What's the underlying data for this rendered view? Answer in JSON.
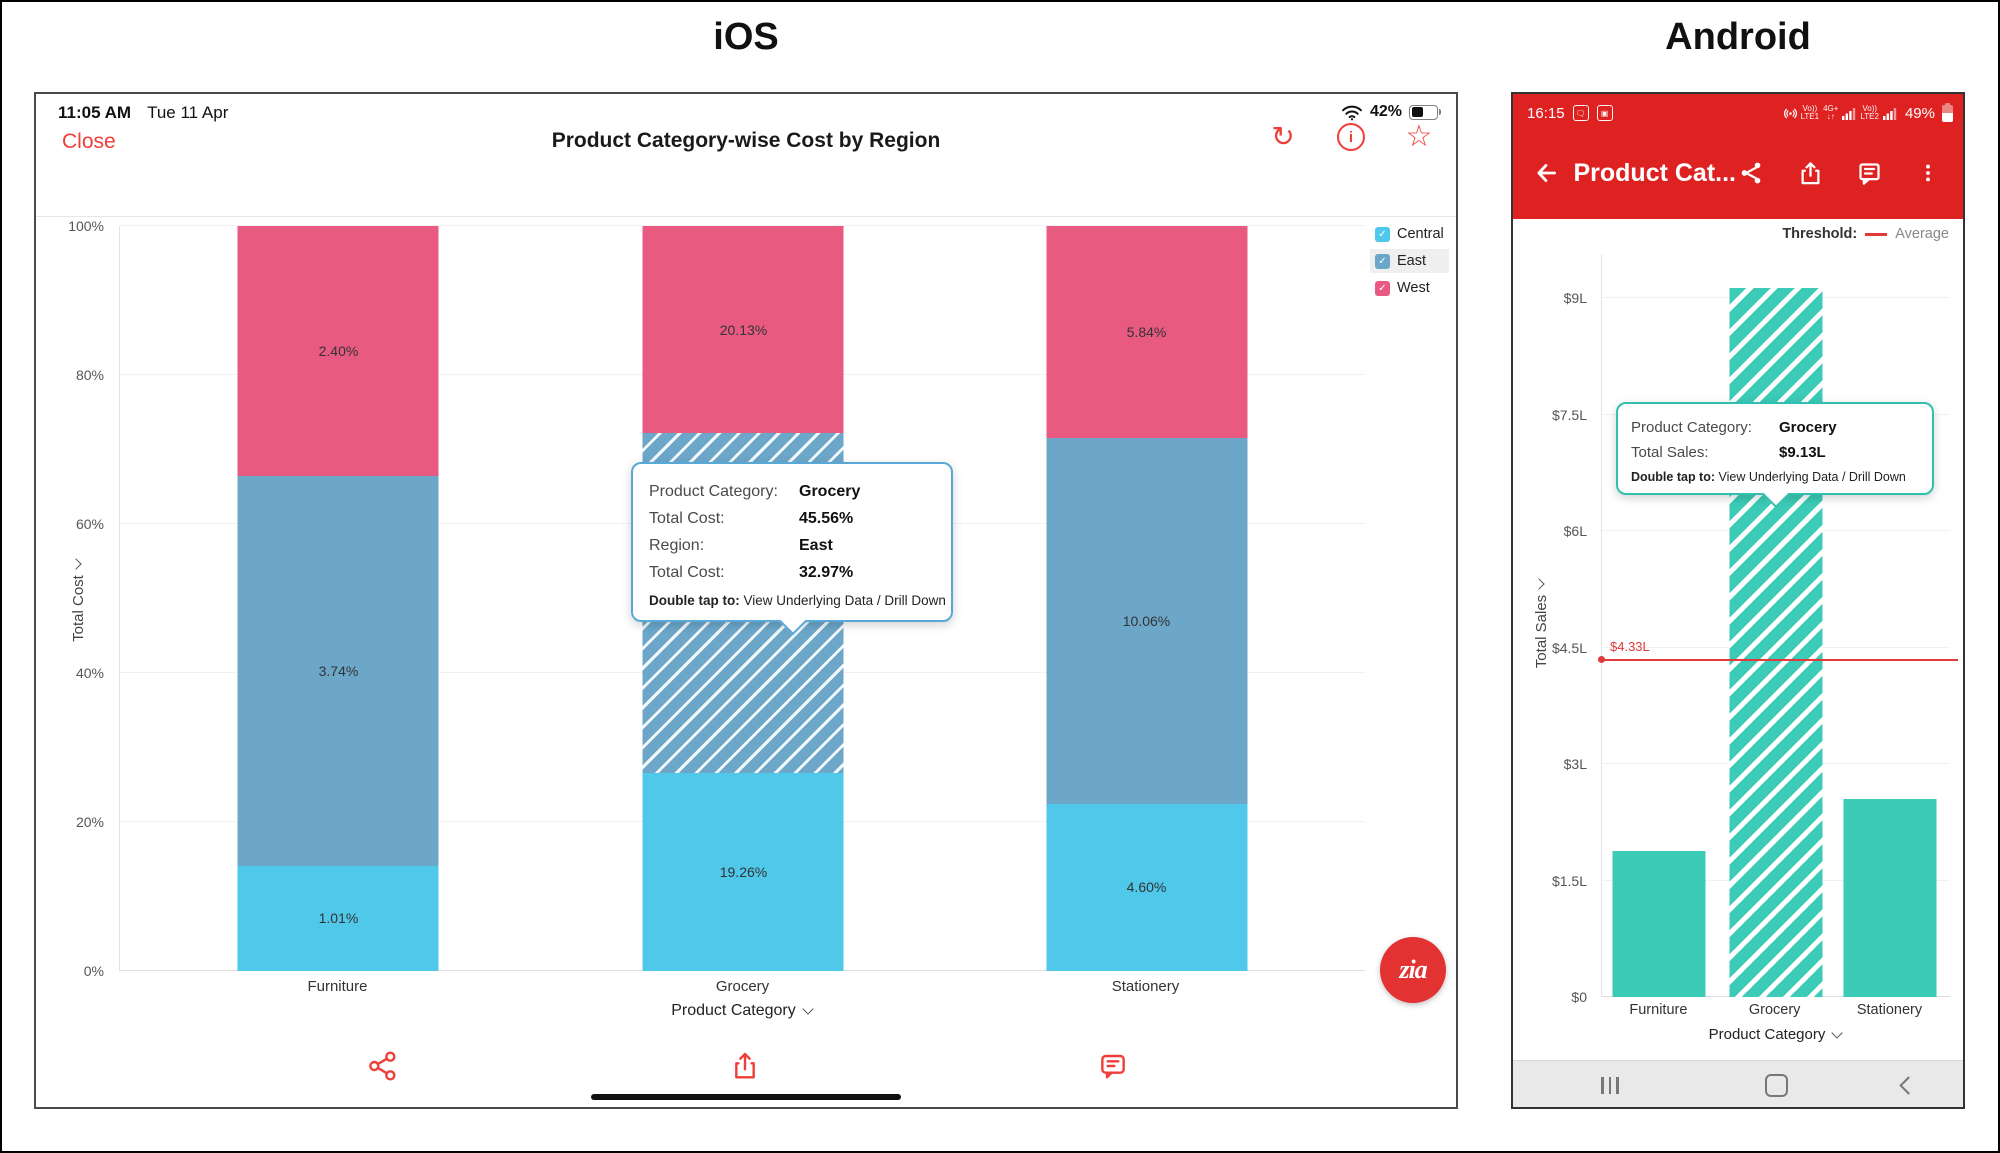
{
  "page": {
    "ios_heading": "iOS",
    "android_heading": "Android"
  },
  "ios": {
    "status": {
      "time": "11:05 AM",
      "date": "Tue 11 Apr",
      "battery_percent": "42%"
    },
    "nav": {
      "close_label": "Close",
      "title": "Product Category-wise Cost by Region"
    },
    "legend": {
      "items": [
        {
          "label": "Central",
          "color": "#4FC8EA",
          "checked": true,
          "highlighted": false
        },
        {
          "label": "East",
          "color": "#6CA7CA",
          "checked": true,
          "highlighted": true
        },
        {
          "label": "West",
          "color": "#E85A80",
          "checked": true,
          "highlighted": false
        }
      ]
    },
    "tooltip": {
      "rows": [
        {
          "label": "Product Category:",
          "value": "Grocery"
        },
        {
          "label": "Total Cost:",
          "value": "45.56%"
        },
        {
          "label": "Region:",
          "value": "East"
        },
        {
          "label": "Total Cost:",
          "value": "32.97%"
        }
      ],
      "footer_label": "Double tap to:",
      "footer_value": "View Underlying Data / Drill Down"
    },
    "zia_label": "zia"
  },
  "android": {
    "status": {
      "time": "16:15",
      "volte1_top": "Vo))",
      "volte1_bot": "LTE1",
      "net_top": "4G+",
      "net_bot": "↓↑",
      "volte2_top": "Vo))",
      "volte2_bot": "LTE2",
      "battery_percent": "49%"
    },
    "appbar": {
      "title": "Product Cat..."
    },
    "threshold_legend": {
      "title": "Threshold:",
      "label": "Average",
      "color": "#E23A3A"
    },
    "tooltip": {
      "rows": [
        {
          "label": "Product Category:",
          "value": "Grocery"
        },
        {
          "label": "Total Sales:",
          "value": "$9.13L"
        }
      ],
      "footer_label": "Double tap to:",
      "footer_value": "View Underlying Data / Drill Down"
    }
  },
  "chart_data": [
    {
      "id": "ios-stacked-bar",
      "type": "bar",
      "subtype": "stacked-100-percent",
      "title": "Product Category-wise Cost by Region",
      "categories": [
        "Furniture",
        "Grocery",
        "Stationery"
      ],
      "series": [
        {
          "name": "Central",
          "color": "#4FC8EA",
          "values": [
            1.01,
            19.26,
            4.6
          ]
        },
        {
          "name": "East",
          "color": "#6CA7CA",
          "values": [
            3.74,
            32.97,
            10.06
          ]
        },
        {
          "name": "West",
          "color": "#E85A80",
          "values": [
            2.4,
            20.13,
            5.84
          ]
        }
      ],
      "value_suffix": "%",
      "xlabel": "Product Category",
      "ylabel": "Total Cost",
      "yticks": [
        "0%",
        "20%",
        "40%",
        "60%",
        "80%",
        "100%"
      ],
      "grid": true,
      "legend_position": "top-right",
      "selected_segment": {
        "category": "Grocery",
        "series": "East",
        "hatched": true
      }
    },
    {
      "id": "android-bar",
      "type": "bar",
      "categories": [
        "Furniture",
        "Grocery",
        "Stationery"
      ],
      "values": [
        1.88,
        9.13,
        2.55
      ],
      "bar_color": "#3BCBB7",
      "xlabel": "Product Category",
      "ylabel": "Total Sales",
      "yticks": [
        "$0",
        "$1.5L",
        "$3L",
        "$4.5L",
        "$6L",
        "$7.5L",
        "$9L"
      ],
      "ytick_values": [
        0,
        1.5,
        3,
        4.5,
        6,
        7.5,
        9
      ],
      "ymax": 9.57,
      "grid": true,
      "threshold": {
        "value": 4.33,
        "label": "$4.33L",
        "name": "Average",
        "color": "#E23A3A"
      },
      "selected_bar": "Grocery"
    }
  ]
}
